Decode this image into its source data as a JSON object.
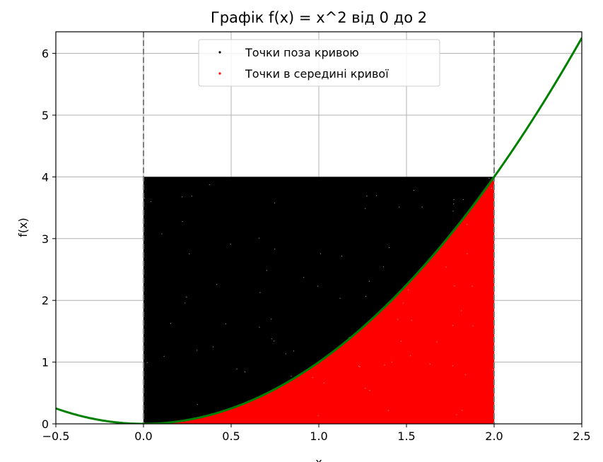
{
  "chart_data": {
    "type": "scatter",
    "title": "Графік f(x) = x^2 від 0 до 2",
    "xlabel": "x",
    "ylabel": "f(x)",
    "xlim": [
      -0.5,
      2.5
    ],
    "ylim": [
      0,
      6.35
    ],
    "xticks": [
      -0.5,
      0.0,
      0.5,
      1.0,
      1.5,
      2.0,
      2.5
    ],
    "xtick_labels": [
      "−0.5",
      "0.0",
      "0.5",
      "1.0",
      "1.5",
      "2.0",
      "2.5"
    ],
    "yticks": [
      0,
      1,
      2,
      3,
      4,
      5,
      6
    ],
    "ytick_labels": [
      "0",
      "1",
      "2",
      "3",
      "4",
      "5",
      "6"
    ],
    "grid": true,
    "legend_position": "top-center",
    "curve": {
      "function": "x^2",
      "x_range": [
        -0.5,
        2.5
      ],
      "color": "#008000"
    },
    "vertical_lines": [
      {
        "x": 0.0,
        "style": "dashed",
        "color": "#808080"
      },
      {
        "x": 2.0,
        "style": "dashed",
        "color": "#808080"
      }
    ],
    "sampling_region": {
      "x": [
        0,
        2
      ],
      "y": [
        0,
        4
      ]
    },
    "series": [
      {
        "name": "Точки поза кривою",
        "color": "#000000",
        "region": "y > x^2"
      },
      {
        "name": "Точки в середині кривої",
        "color": "#ff0000",
        "region": "y <= x^2"
      }
    ]
  }
}
